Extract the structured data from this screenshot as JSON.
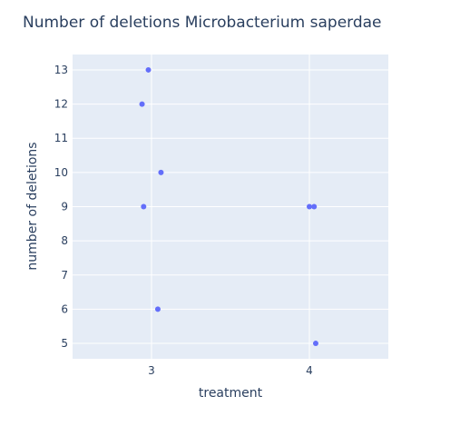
{
  "chart_data": {
    "type": "scatter",
    "title": "Number of deletions Microbacterium saperdae",
    "xlabel": "treatment",
    "ylabel": "number of deletions",
    "xlim": [
      2.5,
      4.5
    ],
    "ylim": [
      4.55,
      13.45
    ],
    "x_ticks": [
      3,
      4
    ],
    "y_ticks": [
      5,
      6,
      7,
      8,
      9,
      10,
      11,
      12,
      13
    ],
    "grid": true,
    "legend": "none",
    "series": [
      {
        "points": [
          {
            "x": 2.98,
            "y": 13
          },
          {
            "x": 2.94,
            "y": 12
          },
          {
            "x": 3.06,
            "y": 10
          },
          {
            "x": 2.95,
            "y": 9
          },
          {
            "x": 3.04,
            "y": 6
          },
          {
            "x": 4.0,
            "y": 9
          },
          {
            "x": 4.03,
            "y": 9
          },
          {
            "x": 4.04,
            "y": 5
          }
        ]
      }
    ]
  },
  "colors": {
    "plot_background": "#e5ecf6",
    "grid": "#ffffff",
    "marker": "#636efa",
    "text": "#2a3f5f"
  }
}
